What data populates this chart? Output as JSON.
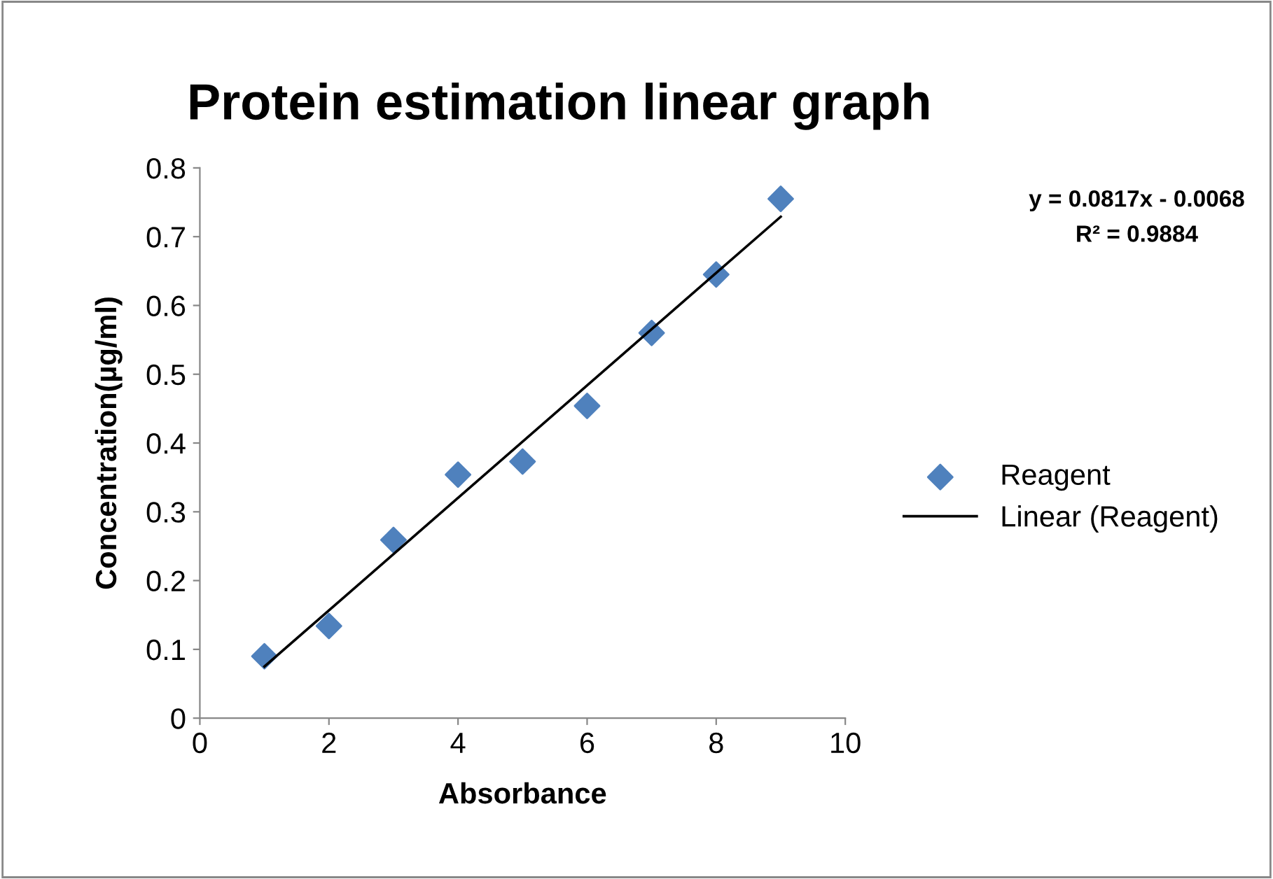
{
  "chart_data": {
    "type": "scatter",
    "title": "Protein estimation linear graph",
    "xlabel": "Absorbance",
    "ylabel": "Concentration(µg/ml)",
    "annotations": [
      "y = 0.0817x - 0.0068",
      "R² = 0.9884"
    ],
    "xlim": [
      0,
      10
    ],
    "ylim": [
      0,
      0.8
    ],
    "xticks": [
      0,
      2,
      4,
      6,
      8,
      10
    ],
    "yticks": [
      0,
      0.1,
      0.2,
      0.3,
      0.4,
      0.5,
      0.6,
      0.7,
      0.8
    ],
    "grid": false,
    "legend": "right",
    "series": [
      {
        "name": "Reagent",
        "marker": "diamond",
        "color": "#4f81bd",
        "x": [
          1,
          2,
          3,
          4,
          5,
          6,
          7,
          8,
          9
        ],
        "values": [
          0.09,
          0.134,
          0.259,
          0.354,
          0.373,
          0.454,
          0.56,
          0.645,
          0.755
        ]
      },
      {
        "name": "Linear (Reagent)",
        "type": "line",
        "color": "#000000",
        "line_style": "solid",
        "marker": "none",
        "x": [
          1,
          9
        ],
        "values": [
          0.075,
          0.729
        ]
      }
    ]
  }
}
